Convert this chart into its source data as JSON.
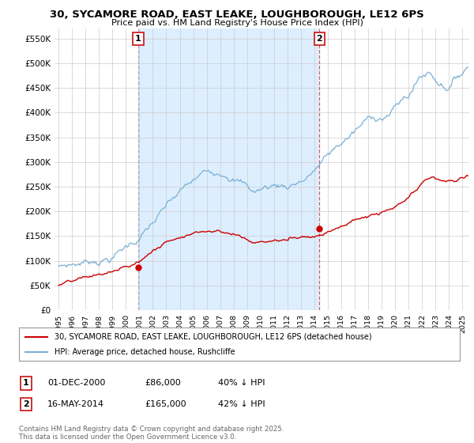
{
  "title": "30, SYCAMORE ROAD, EAST LEAKE, LOUGHBOROUGH, LE12 6PS",
  "subtitle": "Price paid vs. HM Land Registry's House Price Index (HPI)",
  "ylabel_ticks": [
    "£0",
    "£50K",
    "£100K",
    "£150K",
    "£200K",
    "£250K",
    "£300K",
    "£350K",
    "£400K",
    "£450K",
    "£500K",
    "£550K"
  ],
  "ytick_values": [
    0,
    50000,
    100000,
    150000,
    200000,
    250000,
    300000,
    350000,
    400000,
    450000,
    500000,
    550000
  ],
  "ylim": [
    0,
    570000
  ],
  "xlim_start": 1994.7,
  "xlim_end": 2025.5,
  "purchase1_date": 2000.917,
  "purchase1_price": 86000,
  "purchase2_date": 2014.375,
  "purchase2_price": 165000,
  "red_color": "#cc0000",
  "blue_color": "#7bafd4",
  "shade_color": "#ddeeff",
  "vline1_color": "#aaaacc",
  "vline2_color": "#cc6666",
  "legend_line1": "30, SYCAMORE ROAD, EAST LEAKE, LOUGHBOROUGH, LE12 6PS (detached house)",
  "legend_line2": "HPI: Average price, detached house, Rushcliffe",
  "footer": "Contains HM Land Registry data © Crown copyright and database right 2025.\nThis data is licensed under the Open Government Licence v3.0.",
  "bg_color": "#ffffff",
  "grid_color": "#cccccc"
}
